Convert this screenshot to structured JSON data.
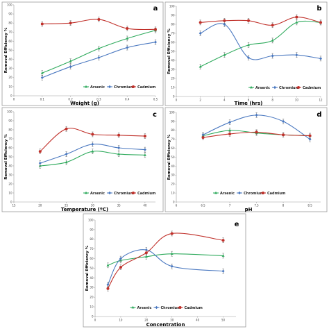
{
  "colors": {
    "Arsenic": "#2eaa5c",
    "Chromium": "#4a78c0",
    "Cadmium": "#c0302a"
  },
  "chart_data": [
    {
      "type": "line",
      "panel_label": "a",
      "xlabel": "Weight (g)",
      "ylabel": "Removal Efficiency %",
      "x": [
        0.1,
        0.2,
        0.3,
        0.4,
        0.5
      ],
      "xticks": [
        0,
        0.1,
        0.2,
        0.3,
        0.4,
        0.5
      ],
      "xlim": [
        0,
        0.5
      ],
      "yticks": [
        0,
        10,
        20,
        30,
        40,
        50,
        60,
        70,
        80,
        90,
        100
      ],
      "ylim": [
        0,
        100
      ],
      "legend_position": "bottom-right",
      "series": [
        {
          "name": "Arsenic",
          "marker": "triangle",
          "values": [
            25,
            38,
            52,
            63,
            72
          ]
        },
        {
          "name": "Chromium",
          "marker": "diamond",
          "values": [
            20,
            32,
            42,
            53,
            59
          ]
        },
        {
          "name": "Cadmium",
          "marker": "circle",
          "values": [
            79,
            80,
            84,
            74,
            73
          ]
        }
      ]
    },
    {
      "type": "line",
      "panel_label": "b",
      "xlabel": "Time (hrs)",
      "ylabel": "Removal Efficiency %",
      "x": [
        2,
        4,
        6,
        8,
        10,
        12
      ],
      "xticks": [
        0,
        2,
        4,
        6,
        8,
        10,
        12
      ],
      "xlim": [
        0,
        12
      ],
      "yticks": [
        0,
        10,
        20,
        30,
        40,
        50,
        60,
        70,
        80,
        90,
        100
      ],
      "ylim": [
        0,
        100
      ],
      "legend_position": "bottom-right",
      "series": [
        {
          "name": "Arsenic",
          "marker": "triangle",
          "values": [
            33,
            46,
            57,
            62,
            82,
            82
          ]
        },
        {
          "name": "Chromium",
          "marker": "diamond",
          "values": [
            70,
            80,
            43,
            45,
            46,
            42
          ]
        },
        {
          "name": "Cadmium",
          "marker": "circle",
          "values": [
            82,
            84,
            84,
            79,
            88,
            82
          ]
        }
      ]
    },
    {
      "type": "line",
      "panel_label": "c",
      "xlabel": "Temperature (ºC)",
      "ylabel": "Removal Efficiency %",
      "x": [
        20,
        25,
        30,
        35,
        40
      ],
      "xticks": [
        15,
        20,
        25,
        30,
        35,
        40
      ],
      "xlim": [
        15,
        42
      ],
      "yticks": [
        0,
        10,
        20,
        30,
        40,
        50,
        60,
        70,
        80,
        90,
        100
      ],
      "ylim": [
        0,
        100
      ],
      "legend_position": "bottom-right",
      "series": [
        {
          "name": "Arsenic",
          "marker": "triangle",
          "values": [
            40,
            44,
            56,
            53,
            52
          ]
        },
        {
          "name": "Chromium",
          "marker": "diamond",
          "values": [
            43,
            53,
            64,
            60,
            58
          ]
        },
        {
          "name": "Cadmium",
          "marker": "circle",
          "values": [
            56,
            81,
            75,
            74,
            73
          ]
        }
      ]
    },
    {
      "type": "line",
      "panel_label": "d",
      "xlabel": "pH",
      "ylabel": "Removal Efficiency %",
      "x": [
        6.5,
        7,
        7.5,
        8,
        8.5
      ],
      "xticks": [
        6,
        6.5,
        7,
        7.5,
        8,
        8.5
      ],
      "xlim": [
        6,
        8.7
      ],
      "yticks": [
        0,
        10,
        20,
        30,
        40,
        50,
        60,
        70,
        80,
        90,
        100
      ],
      "ylim": [
        0,
        100
      ],
      "legend_position": "bottom-center",
      "series": [
        {
          "name": "Arsenic",
          "marker": "triangle",
          "values": [
            74,
            80,
            77,
            75,
            74
          ]
        },
        {
          "name": "Chromium",
          "marker": "diamond",
          "values": [
            75,
            89,
            97,
            90,
            70
          ]
        },
        {
          "name": "Cadmium",
          "marker": "circle",
          "values": [
            72,
            76,
            78,
            75,
            74
          ]
        }
      ]
    },
    {
      "type": "line",
      "panel_label": "e",
      "xlabel": "Concentration",
      "ylabel": "Removal Efficiency %",
      "x": [
        5,
        10,
        20,
        30,
        50
      ],
      "xticks": [
        0,
        10,
        20,
        30,
        40,
        50
      ],
      "xlim": [
        0,
        55
      ],
      "yticks": [
        0,
        10,
        20,
        30,
        40,
        50,
        60,
        70,
        80,
        90,
        100
      ],
      "ylim": [
        0,
        100
      ],
      "legend_position": "bottom-center",
      "series": [
        {
          "name": "Arsenic",
          "marker": "triangle",
          "values": [
            53,
            58,
            62,
            65,
            63
          ]
        },
        {
          "name": "Chromium",
          "marker": "diamond",
          "values": [
            33,
            60,
            69,
            52,
            47
          ]
        },
        {
          "name": "Cadmium",
          "marker": "circle",
          "values": [
            29,
            51,
            66,
            86,
            79
          ]
        }
      ]
    }
  ]
}
